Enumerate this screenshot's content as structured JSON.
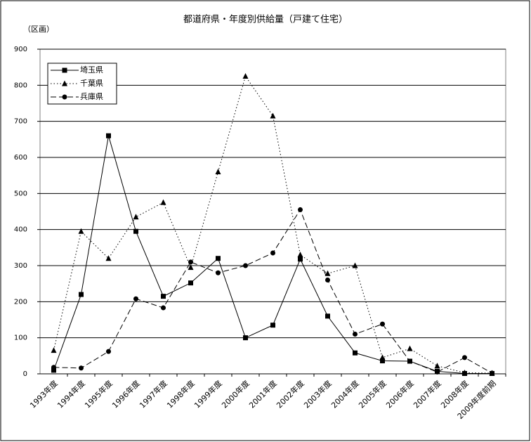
{
  "chart_data": {
    "type": "line",
    "title": "都道府県・年度別供給量（戸建て住宅）",
    "y_label": "（区画）",
    "categories": [
      "1993年度",
      "1994年度",
      "1995年度",
      "1996年度",
      "1997年度",
      "1998年度",
      "1999年度",
      "2000年度",
      "2001年度",
      "2002年度",
      "2003年度",
      "2004年度",
      "2005年度",
      "2006年度",
      "2007年度",
      "2008年度",
      "2009年度前期"
    ],
    "series": [
      {
        "name": "埼玉県",
        "color": "#000000",
        "marker": "square",
        "dash": "solid",
        "values": [
          10,
          220,
          660,
          395,
          215,
          252,
          320,
          100,
          135,
          318,
          160,
          58,
          36,
          35,
          7,
          1,
          1
        ]
      },
      {
        "name": "千葉県",
        "color": "#000000",
        "marker": "triangle",
        "dash": "dotted",
        "values": [
          65,
          395,
          320,
          435,
          475,
          295,
          560,
          825,
          715,
          330,
          278,
          300,
          45,
          70,
          22,
          3,
          2
        ]
      },
      {
        "name": "兵庫県",
        "color": "#000000",
        "marker": "circle",
        "dash": "dashed",
        "values": [
          18,
          16,
          62,
          208,
          183,
          310,
          280,
          300,
          335,
          455,
          260,
          110,
          138,
          35,
          5,
          45,
          2
        ]
      }
    ],
    "ylim": [
      0,
      900
    ],
    "yticks": [
      0,
      100,
      200,
      300,
      400,
      500,
      600,
      700,
      800,
      900
    ],
    "grid": true,
    "legend": "top-left"
  }
}
